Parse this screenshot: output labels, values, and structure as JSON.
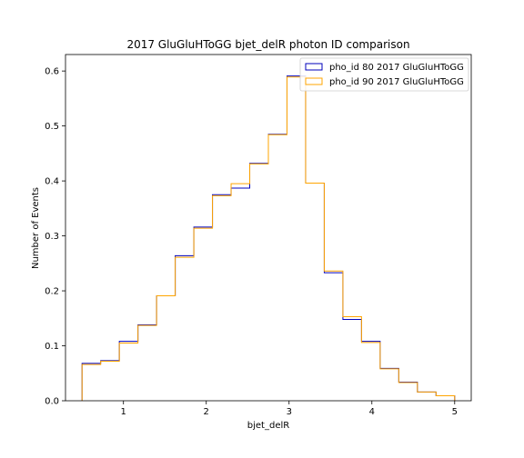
{
  "chart_data": {
    "type": "step-histogram",
    "title": "2017 GluGluHToGG bjet_delR photon ID comparison",
    "xlabel": "bjet_delR",
    "ylabel": "Number of Events",
    "xlim": [
      0.3,
      5.2
    ],
    "ylim": [
      0.0,
      0.63
    ],
    "x_ticks": [
      1,
      2,
      3,
      4,
      5
    ],
    "y_ticks": [
      0.0,
      0.1,
      0.2,
      0.3,
      0.4,
      0.5,
      0.6
    ],
    "x_tick_labels": [
      "1",
      "2",
      "3",
      "4",
      "5"
    ],
    "y_tick_labels": [
      "0.0",
      "0.1",
      "0.2",
      "0.3",
      "0.4",
      "0.5",
      "0.6"
    ],
    "legend_position": "top-right",
    "grid": false,
    "bin_edges": [
      0.5,
      0.725,
      0.95,
      1.175,
      1.4,
      1.625,
      1.85,
      2.075,
      2.3,
      2.525,
      2.75,
      2.975,
      3.2,
      3.425,
      3.65,
      3.875,
      4.1,
      4.325,
      4.55,
      4.775,
      5.0
    ],
    "series": [
      {
        "name": "pho_id 80 2017 GluGluHToGG",
        "color": "#0000bb",
        "values": [
          0.068,
          0.073,
          0.108,
          0.138,
          0.191,
          0.264,
          0.316,
          0.375,
          0.387,
          0.432,
          0.485,
          0.591,
          0.396,
          0.233,
          0.148,
          0.108,
          0.059,
          0.034,
          0.016,
          0.009
        ]
      },
      {
        "name": "pho_id 90 2017 GluGluHToGG",
        "color": "#ffa500",
        "values": [
          0.066,
          0.072,
          0.105,
          0.137,
          0.191,
          0.261,
          0.314,
          0.373,
          0.395,
          0.431,
          0.484,
          0.589,
          0.396,
          0.236,
          0.153,
          0.106,
          0.058,
          0.033,
          0.016,
          0.009
        ]
      }
    ]
  }
}
